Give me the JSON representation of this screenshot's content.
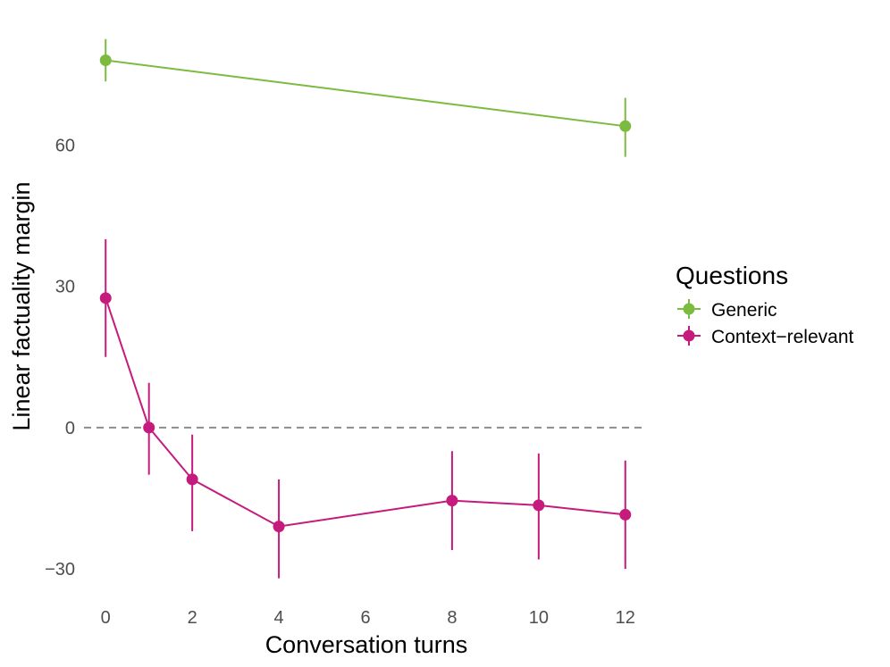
{
  "chart_data": {
    "type": "line",
    "xlabel": "Conversation turns",
    "ylabel": "Linear factuality margin",
    "xlim": [
      -0.5,
      12.5
    ],
    "ylim": [
      -37,
      87
    ],
    "x_ticks": [
      0,
      2,
      4,
      6,
      8,
      10,
      12
    ],
    "x_tick_labels": [
      "0",
      "2",
      "4",
      "6",
      "8",
      "10",
      "12"
    ],
    "y_ticks": [
      -30,
      0,
      30,
      60
    ],
    "y_tick_labels": [
      "−30",
      "0",
      "30",
      "60"
    ],
    "reference_line": {
      "y": 0,
      "style": "dashed"
    },
    "legend": {
      "title": "Questions",
      "position": "right"
    },
    "series": [
      {
        "name": "Generic",
        "color": "#7cbb3f",
        "points": [
          {
            "x": 0,
            "y": 78,
            "lo": 73.5,
            "hi": 82.5
          },
          {
            "x": 12,
            "y": 64,
            "lo": 57.5,
            "hi": 70
          }
        ]
      },
      {
        "name": "Context−relevant",
        "color": "#c51b7d",
        "points": [
          {
            "x": 0,
            "y": 27.5,
            "lo": 15,
            "hi": 40
          },
          {
            "x": 1,
            "y": 0,
            "lo": -10,
            "hi": 9.5
          },
          {
            "x": 2,
            "y": -11,
            "lo": -22,
            "hi": -1.5
          },
          {
            "x": 4,
            "y": -21,
            "lo": -32,
            "hi": -11
          },
          {
            "x": 8,
            "y": -15.5,
            "lo": -26,
            "hi": -5
          },
          {
            "x": 10,
            "y": -16.5,
            "lo": -28,
            "hi": -5.5
          },
          {
            "x": 12,
            "y": -18.5,
            "lo": -30,
            "hi": -7
          }
        ]
      }
    ]
  }
}
